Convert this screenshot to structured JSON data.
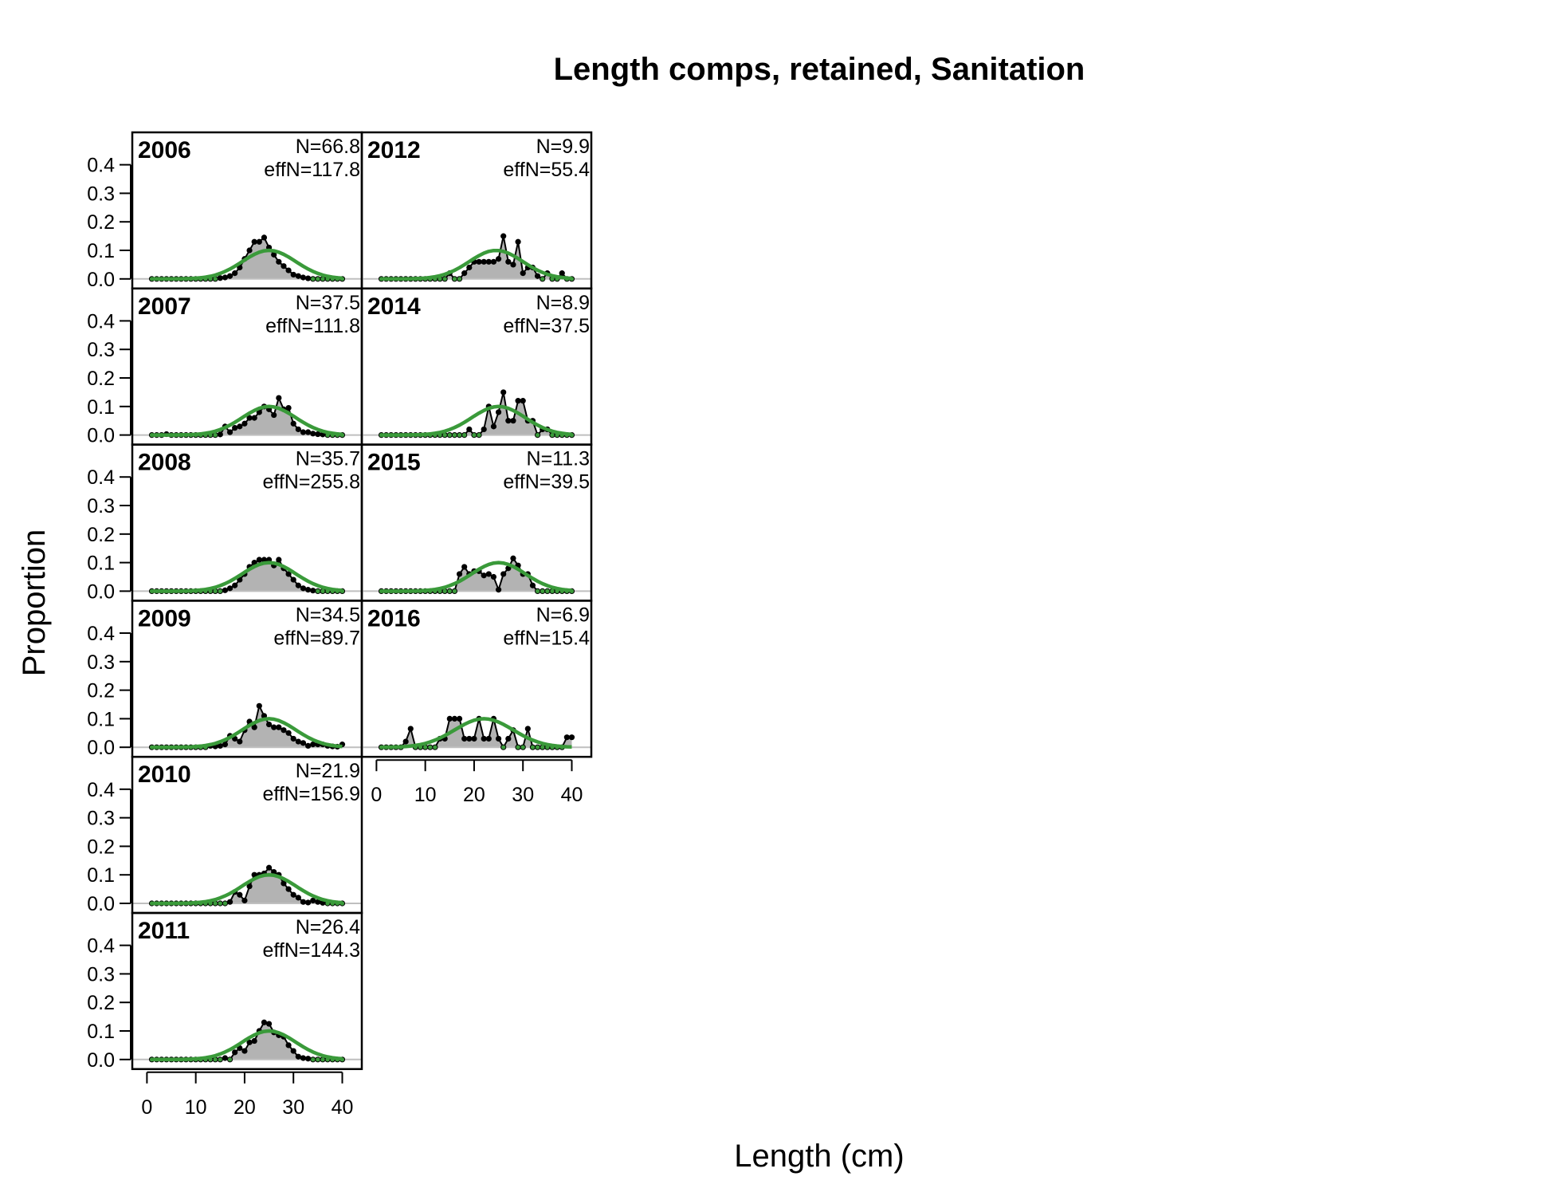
{
  "chart_data": {
    "type": "area",
    "title": "Length comps, retained, Sanitation",
    "xlabel": "Length (cm)",
    "ylabel": "Proportion",
    "xlim": [
      -3,
      44
    ],
    "ylim": [
      0,
      0.48
    ],
    "x_ticks": [
      "0",
      "10",
      "20",
      "30",
      "40"
    ],
    "y_ticks": [
      "0.0",
      "0.1",
      "0.2",
      "0.3",
      "0.4"
    ],
    "bins": [
      1,
      2,
      3,
      4,
      5,
      6,
      7,
      8,
      9,
      10,
      11,
      12,
      13,
      14,
      15,
      16,
      17,
      18,
      19,
      20,
      21,
      22,
      23,
      24,
      25,
      26,
      27,
      28,
      29,
      30,
      31,
      32,
      33,
      34,
      35,
      36,
      37,
      38,
      39,
      40
    ],
    "colors": {
      "observed_fill": "#b3b3b3",
      "observed_line": "#000000",
      "expected_line": "#3a9a3a",
      "zero_line": "#bfbfbf"
    },
    "panels": [
      {
        "year": "2006",
        "n_label": "N=66.8",
        "effn_label": "effN=117.8",
        "observed": [
          0,
          0,
          0,
          0,
          0,
          0,
          0,
          0,
          0,
          0,
          0,
          0,
          0,
          0,
          0.003,
          0.005,
          0.01,
          0.02,
          0.04,
          0.07,
          0.1,
          0.13,
          0.13,
          0.145,
          0.11,
          0.085,
          0.06,
          0.045,
          0.03,
          0.015,
          0.01,
          0.005,
          0.002,
          0,
          0,
          0,
          0,
          0,
          0,
          0
        ]
      },
      {
        "year": "2007",
        "n_label": "N=37.5",
        "effn_label": "effN=111.8",
        "observed": [
          0,
          0,
          0,
          0.003,
          0,
          0,
          0,
          0,
          0,
          0,
          0,
          0,
          0,
          0,
          0.002,
          0.03,
          0.01,
          0.025,
          0.03,
          0.04,
          0.06,
          0.06,
          0.08,
          0.1,
          0.09,
          0.07,
          0.13,
          0.09,
          0.095,
          0.04,
          0.02,
          0.01,
          0.01,
          0.005,
          0.003,
          0.002,
          0,
          0,
          0,
          0
        ]
      },
      {
        "year": "2008",
        "n_label": "N=35.7",
        "effn_label": "effN=255.8",
        "observed": [
          0,
          0,
          0,
          0,
          0,
          0,
          0,
          0,
          0,
          0,
          0,
          0,
          0,
          0,
          0,
          0.003,
          0.01,
          0.02,
          0.04,
          0.06,
          0.085,
          0.1,
          0.11,
          0.11,
          0.11,
          0.09,
          0.11,
          0.08,
          0.06,
          0.04,
          0.02,
          0.01,
          0.005,
          0.002,
          0,
          0,
          0,
          0,
          0,
          0
        ]
      },
      {
        "year": "2009",
        "n_label": "N=34.5",
        "effn_label": "effN=89.7",
        "observed": [
          0,
          0,
          0,
          0,
          0,
          0,
          0,
          0,
          0,
          0,
          0,
          0,
          0.005,
          0.003,
          0.005,
          0.01,
          0.04,
          0.03,
          0.02,
          0.06,
          0.09,
          0.07,
          0.145,
          0.11,
          0.08,
          0.07,
          0.07,
          0.06,
          0.05,
          0.03,
          0.02,
          0.015,
          0.005,
          0.01,
          0.01,
          0.01,
          0.005,
          0.003,
          0.002,
          0.01
        ]
      },
      {
        "year": "2010",
        "n_label": "N=21.9",
        "effn_label": "effN=156.9",
        "observed": [
          0,
          0,
          0,
          0,
          0,
          0,
          0,
          0,
          0,
          0,
          0,
          0,
          0,
          0,
          0,
          0,
          0.005,
          0.04,
          0.03,
          0.01,
          0.06,
          0.1,
          0.1,
          0.105,
          0.125,
          0.11,
          0.1,
          0.07,
          0.05,
          0.03,
          0.02,
          0.005,
          0.003,
          0.01,
          0.005,
          0.002,
          0,
          0,
          0,
          0
        ]
      },
      {
        "year": "2011",
        "n_label": "N=26.4",
        "effn_label": "effN=144.3",
        "observed": [
          0,
          0,
          0,
          0,
          0,
          0,
          0,
          0,
          0,
          0,
          0,
          0,
          0,
          0,
          0,
          0.005,
          0,
          0.025,
          0.04,
          0.03,
          0.06,
          0.065,
          0.1,
          0.13,
          0.125,
          0.095,
          0.085,
          0.08,
          0.05,
          0.03,
          0.01,
          0.005,
          0.003,
          0,
          0,
          0,
          0,
          0,
          0,
          0
        ]
      },
      {
        "year": "2012",
        "n_label": "N=9.9",
        "effn_label": "effN=55.4",
        "observed": [
          0,
          0,
          0,
          0,
          0,
          0,
          0,
          0,
          0,
          0,
          0,
          0,
          0,
          0,
          0.02,
          0,
          0,
          0.02,
          0.04,
          0.06,
          0.06,
          0.06,
          0.06,
          0.06,
          0.07,
          0.15,
          0.06,
          0.05,
          0.13,
          0.02,
          0.04,
          0.04,
          0.01,
          0,
          0.02,
          0,
          0,
          0.02,
          0,
          0
        ]
      },
      {
        "year": "2014",
        "n_label": "N=8.9",
        "effn_label": "effN=37.5",
        "observed": [
          0,
          0,
          0,
          0,
          0,
          0,
          0,
          0,
          0,
          0,
          0,
          0,
          0,
          0,
          0,
          0,
          0,
          0,
          0.02,
          0,
          0,
          0.02,
          0.1,
          0.03,
          0.08,
          0.15,
          0.05,
          0.05,
          0.12,
          0.12,
          0.05,
          0.05,
          0,
          0.02,
          0.02,
          0,
          0,
          0,
          0,
          0
        ]
      },
      {
        "year": "2015",
        "n_label": "N=11.3",
        "effn_label": "effN=39.5",
        "observed": [
          0,
          0,
          0,
          0,
          0,
          0,
          0,
          0,
          0,
          0,
          0,
          0,
          0,
          0,
          0,
          0,
          0.06,
          0.085,
          0.06,
          0.07,
          0.07,
          0.055,
          0.06,
          0.05,
          0.005,
          0.06,
          0.08,
          0.115,
          0.09,
          0.06,
          0.06,
          0.02,
          0,
          0,
          0,
          0,
          0,
          0,
          0,
          0
        ]
      },
      {
        "year": "2016",
        "n_label": "N=6.9",
        "effn_label": "effN=15.4",
        "observed": [
          0,
          0,
          0,
          0,
          0,
          0.02,
          0.065,
          0,
          0,
          0,
          0,
          0,
          0.03,
          0.03,
          0.1,
          0.1,
          0.1,
          0.03,
          0.03,
          0.03,
          0.1,
          0.03,
          0.03,
          0.1,
          0.03,
          0,
          0.03,
          0.06,
          0,
          0,
          0.065,
          0,
          0,
          0,
          0,
          0,
          0,
          0,
          0.035,
          0.035
        ]
      }
    ]
  }
}
